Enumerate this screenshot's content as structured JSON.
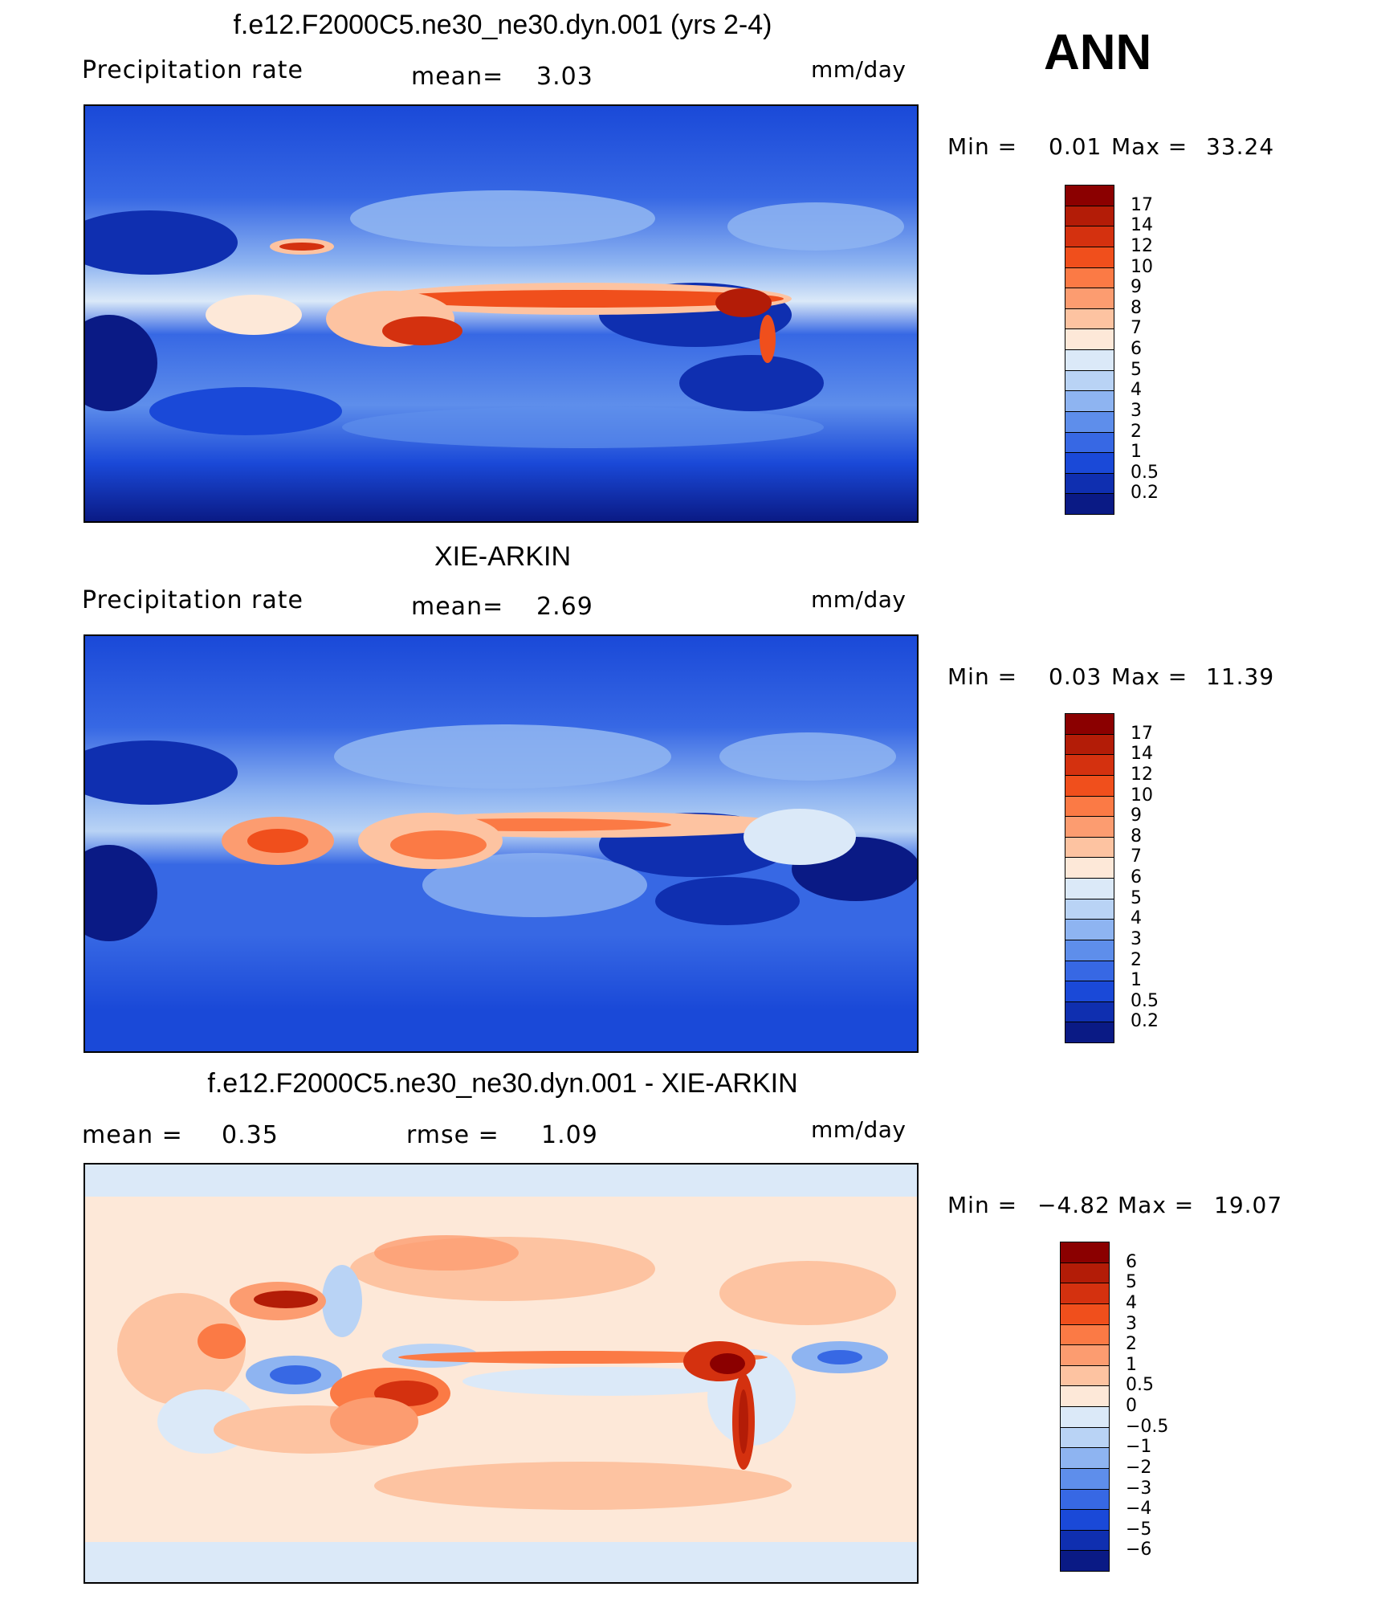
{
  "season": "ANN",
  "panels": [
    {
      "title": "f.e12.F2000C5.ne30_ne30.dyn.001 (yrs 2-4)",
      "left_label": "Precipitation  rate",
      "mid_label": "mean=",
      "mid_value": "3.03",
      "units": "mm/day",
      "min_label": "Min  =",
      "min_value": "0.01",
      "max_label": "Max  =",
      "max_value": "33.24",
      "palette": "absolute"
    },
    {
      "title": "XIE-ARKIN",
      "left_label": "Precipitation  rate",
      "mid_label": "mean=",
      "mid_value": "2.69",
      "units": "mm/day",
      "min_label": "Min  =",
      "min_value": "0.03",
      "max_label": "Max  =",
      "max_value": "11.39",
      "palette": "absolute"
    },
    {
      "title": "f.e12.F2000C5.ne30_ne30.dyn.001 - XIE-ARKIN",
      "left_label": "mean  =",
      "left_value": "0.35",
      "mid_label": "rmse  =",
      "mid_value": "1.09",
      "units": "mm/day",
      "min_label": "Min  =",
      "min_value": "−4.82",
      "max_label": "Max  =",
      "max_value": "19.07",
      "palette": "difference"
    }
  ],
  "colorbars": {
    "absolute": {
      "labels": [
        "17",
        "14",
        "12",
        "10",
        "9",
        "8",
        "7",
        "6",
        "5",
        "4",
        "3",
        "2",
        "1",
        "0.5",
        "0.2"
      ],
      "colors": [
        "#8b0000",
        "#b31c07",
        "#d4310f",
        "#f04f1c",
        "#fb7a45",
        "#fc9c70",
        "#fdc3a1",
        "#fde8d8",
        "#dbe9f8",
        "#b9d3f5",
        "#8eb4f1",
        "#5e8eeb",
        "#3768e4",
        "#1a49d8",
        "#0f2fb0",
        "#0a1a85"
      ]
    },
    "difference": {
      "labels": [
        "6",
        "5",
        "4",
        "3",
        "2",
        "1",
        "0.5",
        "0",
        "−0.5",
        "−1",
        "−2",
        "−3",
        "−4",
        "−5",
        "−6"
      ],
      "colors": [
        "#8b0000",
        "#b31c07",
        "#d4310f",
        "#f04f1c",
        "#fb7a45",
        "#fc9c70",
        "#fdc3a1",
        "#fde8d8",
        "#dbe9f8",
        "#b9d3f5",
        "#8eb4f1",
        "#5e8eeb",
        "#3768e4",
        "#1a49d8",
        "#0f2fb0",
        "#0a1a85"
      ]
    }
  },
  "chart_data": [
    {
      "type": "heatmap",
      "title": "f.e12.F2000C5.ne30_ne30.dyn.001 (yrs 2-4)",
      "variable": "Precipitation  rate",
      "units": "mm/day",
      "mean": 3.03,
      "min": 0.01,
      "max": 33.24,
      "contour_levels": [
        0.2,
        0.5,
        1,
        2,
        3,
        4,
        5,
        6,
        7,
        8,
        9,
        10,
        12,
        14,
        17
      ]
    },
    {
      "type": "heatmap",
      "title": "XIE-ARKIN",
      "variable": "Precipitation  rate",
      "units": "mm/day",
      "mean": 2.69,
      "min": 0.03,
      "max": 11.39,
      "contour_levels": [
        0.2,
        0.5,
        1,
        2,
        3,
        4,
        5,
        6,
        7,
        8,
        9,
        10,
        12,
        14,
        17
      ]
    },
    {
      "type": "heatmap",
      "title": "f.e12.F2000C5.ne30_ne30.dyn.001 - XIE-ARKIN",
      "units": "mm/day",
      "mean": 0.35,
      "rmse": 1.09,
      "min": -4.82,
      "max": 19.07,
      "contour_levels": [
        -6,
        -5,
        -4,
        -3,
        -2,
        -1,
        -0.5,
        0,
        0.5,
        1,
        2,
        3,
        4,
        5,
        6
      ]
    }
  ]
}
